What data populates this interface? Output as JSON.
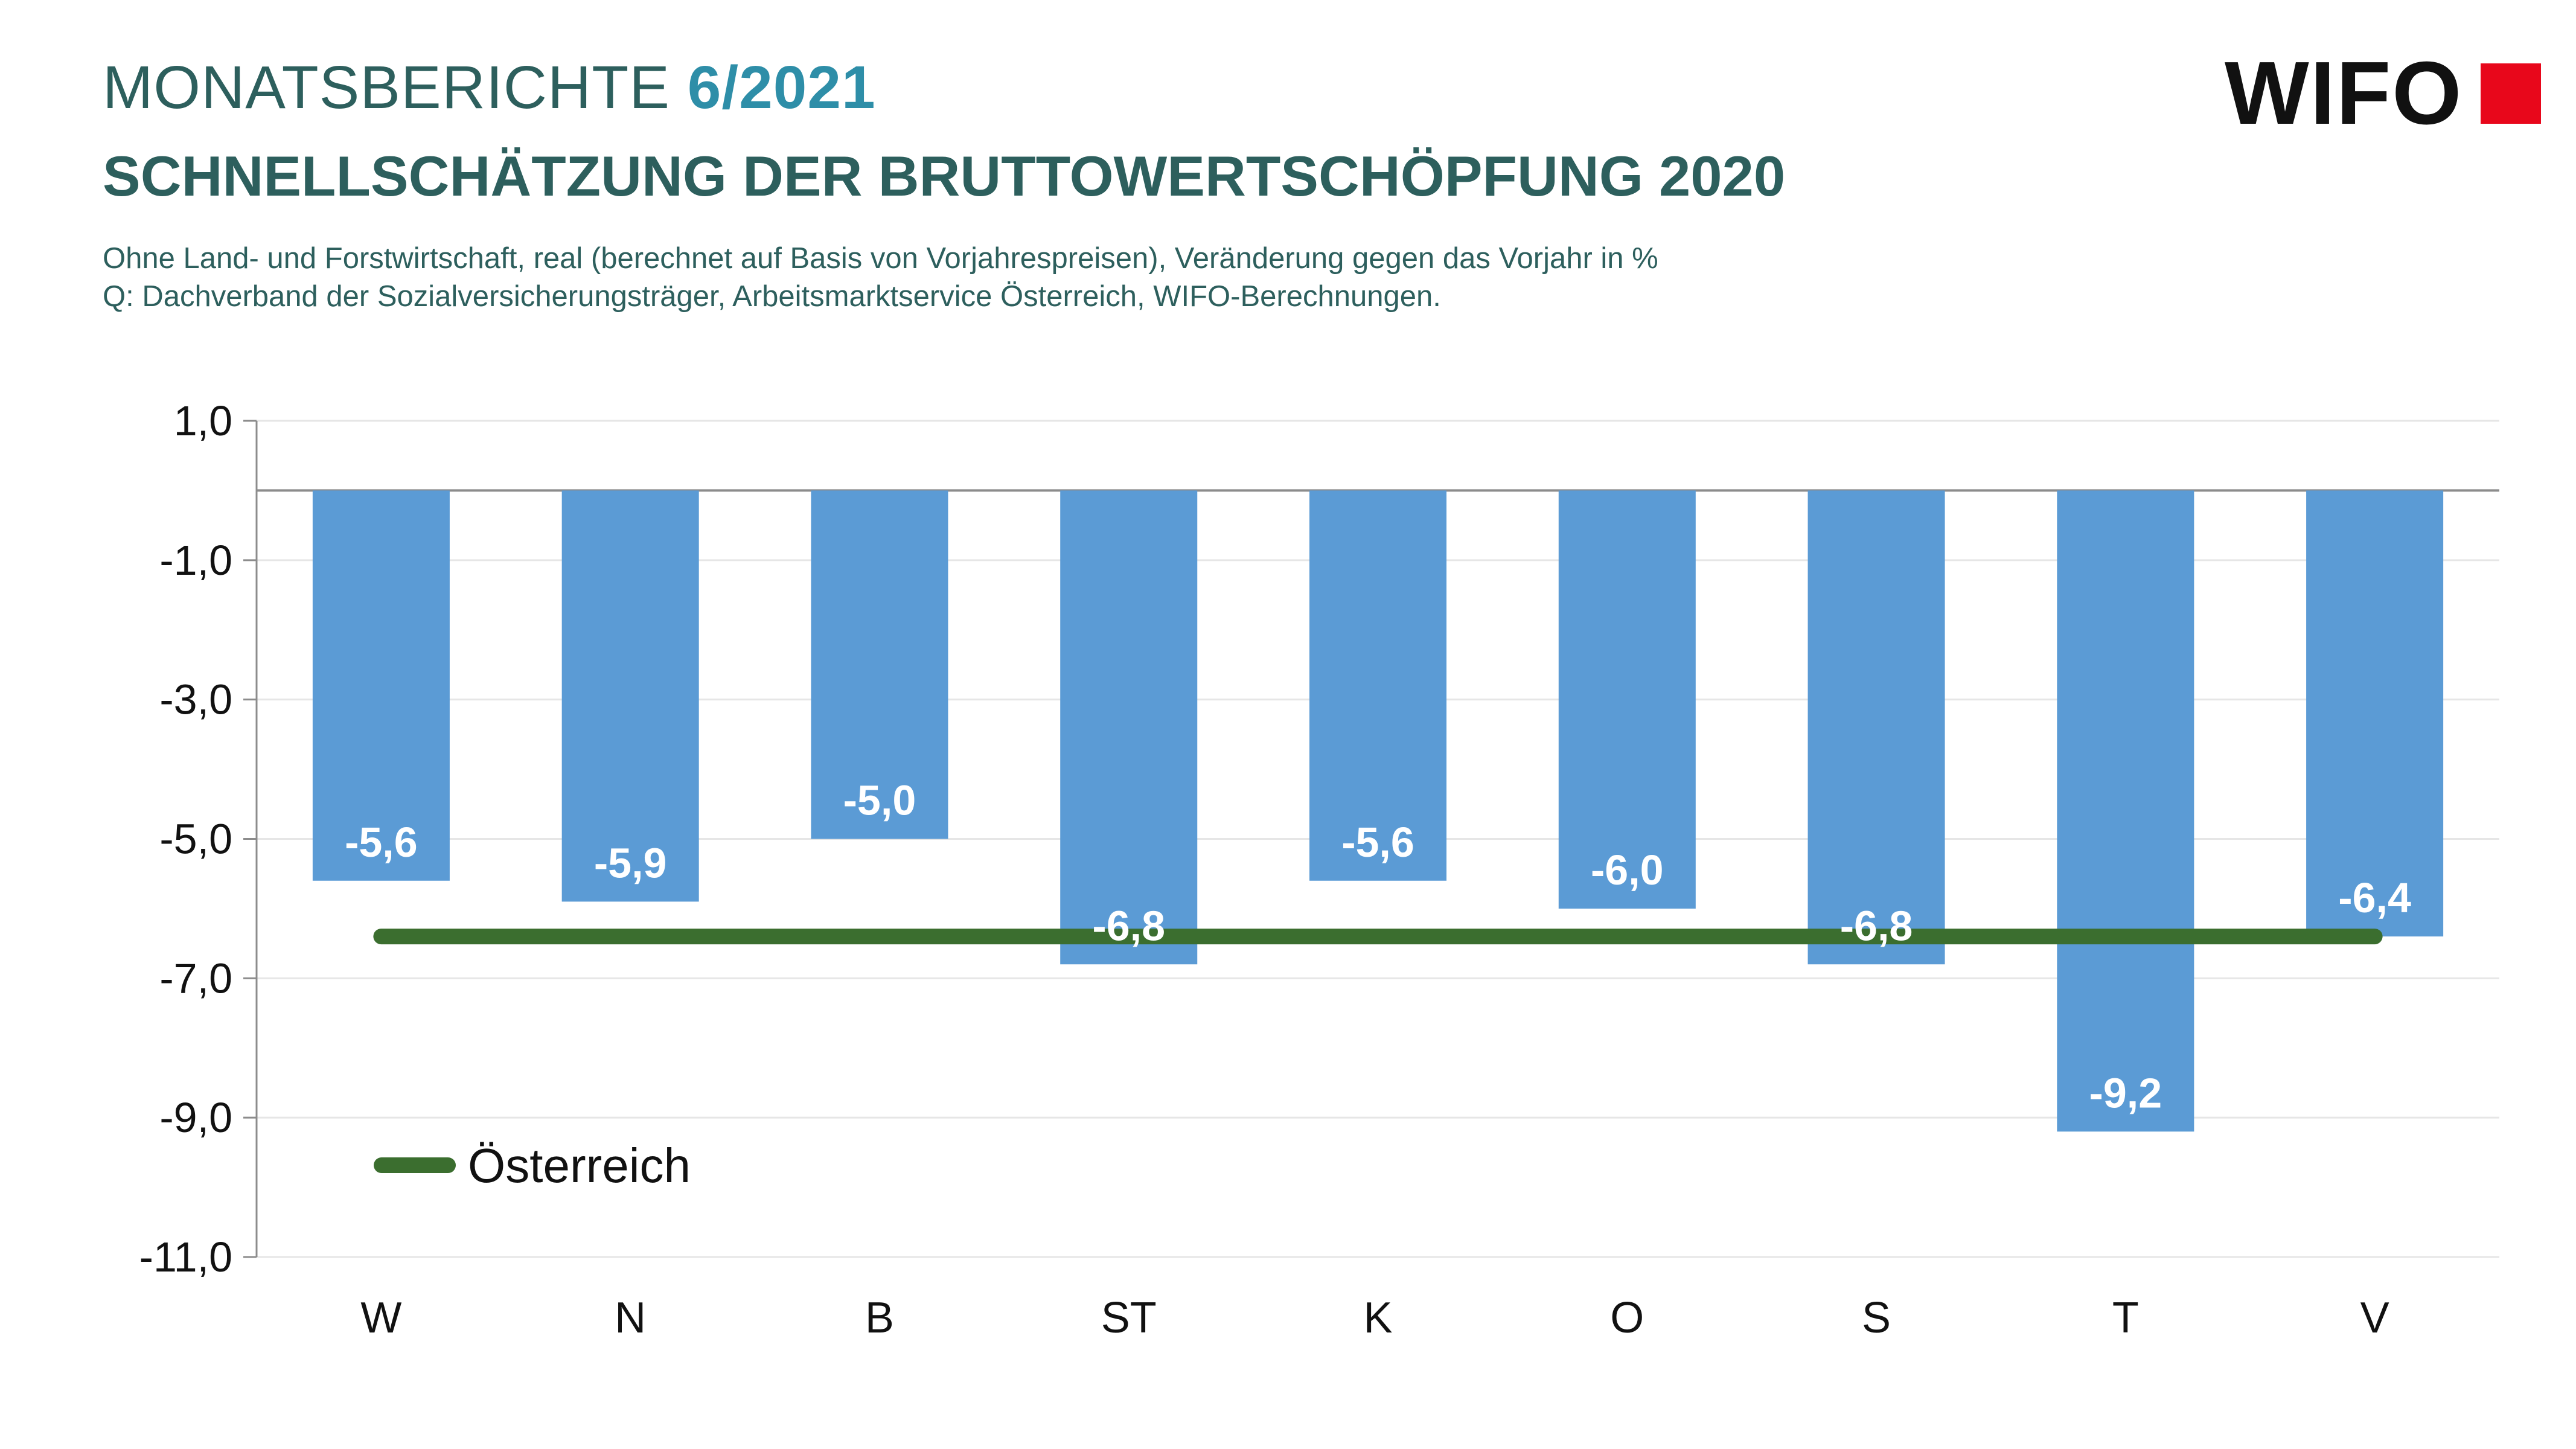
{
  "header": {
    "series_name": "MONATSBERICHTE",
    "issue": "6/2021",
    "title": "SCHNELLSCHÄTZUNG DER BRUTTOWERTSCHÖPFUNG 2020",
    "subtitle_line1": "Ohne Land- und Forstwirtschaft, real (berechnet auf Basis von Vorjahrespreisen), Veränderung gegen das Vorjahr in %",
    "subtitle_line2": "Q: Dachverband der Sozialversicherungsträger, Arbeitsmarktservice Österreich, WIFO-Berechnungen."
  },
  "logo": {
    "text": "WIFO",
    "brand_color": "#e8071b"
  },
  "colors": {
    "bar": "#5b9bd5",
    "line": "#3b6e2f",
    "text_dark": "#2d5f5d",
    "accent": "#2e8ea8"
  },
  "chart_data": {
    "type": "bar",
    "categories": [
      "W",
      "N",
      "B",
      "ST",
      "K",
      "O",
      "S",
      "T",
      "V"
    ],
    "values": [
      -5.6,
      -5.9,
      -5.0,
      -6.8,
      -5.6,
      -6.0,
      -6.8,
      -9.2,
      -6.4
    ],
    "data_labels": [
      "-5,6",
      "-5,9",
      "-5,0",
      "-6,8",
      "-5,6",
      "-6,0",
      "-6,8",
      "-9,2",
      "-6,4"
    ],
    "overlay_line": {
      "name": "Österreich",
      "value": -6.4
    },
    "ylim": [
      -11.0,
      1.0
    ],
    "yticks": [
      1.0,
      -1.0,
      -3.0,
      -5.0,
      -7.0,
      -9.0,
      -11.0
    ],
    "ytick_labels": [
      "1,0",
      "-1,0",
      "-3,0",
      "-5,0",
      "-7,0",
      "-9,0",
      "-11,0"
    ],
    "grid": true,
    "legend_position": "bottom-left"
  }
}
